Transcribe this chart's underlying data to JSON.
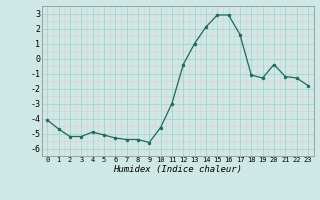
{
  "x": [
    0,
    1,
    2,
    3,
    4,
    5,
    6,
    7,
    8,
    9,
    10,
    11,
    12,
    13,
    14,
    15,
    16,
    17,
    18,
    19,
    20,
    21,
    22,
    23
  ],
  "y": [
    -4.1,
    -4.7,
    -5.2,
    -5.2,
    -4.9,
    -5.1,
    -5.3,
    -5.4,
    -5.4,
    -5.6,
    -4.6,
    -3.0,
    -0.4,
    1.0,
    2.1,
    2.9,
    2.9,
    1.6,
    -1.1,
    -1.3,
    -0.4,
    -1.2,
    -1.3,
    -1.8
  ],
  "line_color": "#1a6b5e",
  "marker": "o",
  "marker_size": 2.0,
  "background_color": "#cde8e5",
  "major_grid_color": "#a8ccc8",
  "minor_grid_color": "#e8c8c8",
  "xlabel": "Humidex (Indice chaleur)",
  "xlim": [
    -0.5,
    23.5
  ],
  "ylim": [
    -6.5,
    3.5
  ],
  "yticks": [
    -6,
    -5,
    -4,
    -3,
    -2,
    -1,
    0,
    1,
    2,
    3
  ],
  "xtick_labels": [
    "0",
    "1",
    "2",
    "3",
    "4",
    "5",
    "6",
    "7",
    "8",
    "9",
    "10",
    "11",
    "12",
    "13",
    "14",
    "15",
    "16",
    "17",
    "18",
    "19",
    "20",
    "21",
    "22",
    "23"
  ]
}
